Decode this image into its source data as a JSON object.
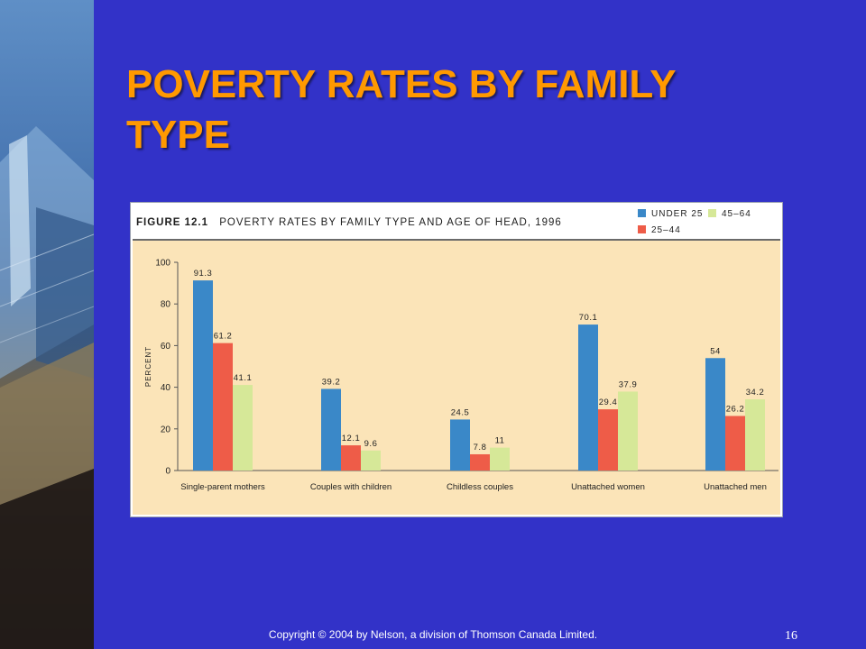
{
  "slide": {
    "title": "POVERTY RATES BY FAMILY TYPE",
    "footer": "Copyright © 2004 by Nelson, a division of Thomson Canada Limited.",
    "page_number": "16"
  },
  "figure": {
    "number": "FIGURE 12.1",
    "caption": "POVERTY RATES BY FAMILY TYPE AND AGE OF HEAD, 1996"
  },
  "colors": {
    "background": "#3232c8",
    "title": "#ff9900",
    "plot_bg": "#fbe4b8",
    "under25": "#3a88c8",
    "age25_44": "#ee5c48",
    "age45_64": "#d6e898"
  },
  "chart_data": {
    "type": "bar",
    "categories": [
      "Single-parent mothers",
      "Couples with children",
      "Childless couples",
      "Unattached women",
      "Unattached men"
    ],
    "series": [
      {
        "name": "UNDER 25",
        "color": "#3a88c8",
        "values": [
          91.3,
          39.2,
          24.5,
          70.1,
          54
        ],
        "labels": [
          "91.3",
          "39.2",
          "24.5",
          "70.1",
          "54"
        ]
      },
      {
        "name": "25–44",
        "color": "#ee5c48",
        "values": [
          61.2,
          12.1,
          7.8,
          29.4,
          26.2
        ],
        "labels": [
          "61.2",
          "12.1",
          "7.8",
          "29.4",
          "26.2"
        ]
      },
      {
        "name": "45–64",
        "color": "#d6e898",
        "values": [
          41.1,
          9.6,
          11,
          37.9,
          34.2
        ],
        "labels": [
          "41.1",
          "9.6",
          "11",
          "37.9",
          "34.2"
        ]
      }
    ],
    "ylabel": "PERCENT",
    "ylim": [
      0,
      100
    ],
    "yticks": [
      "0",
      "20",
      "40",
      "60",
      "80",
      "100"
    ],
    "legend_position": "top-right"
  }
}
